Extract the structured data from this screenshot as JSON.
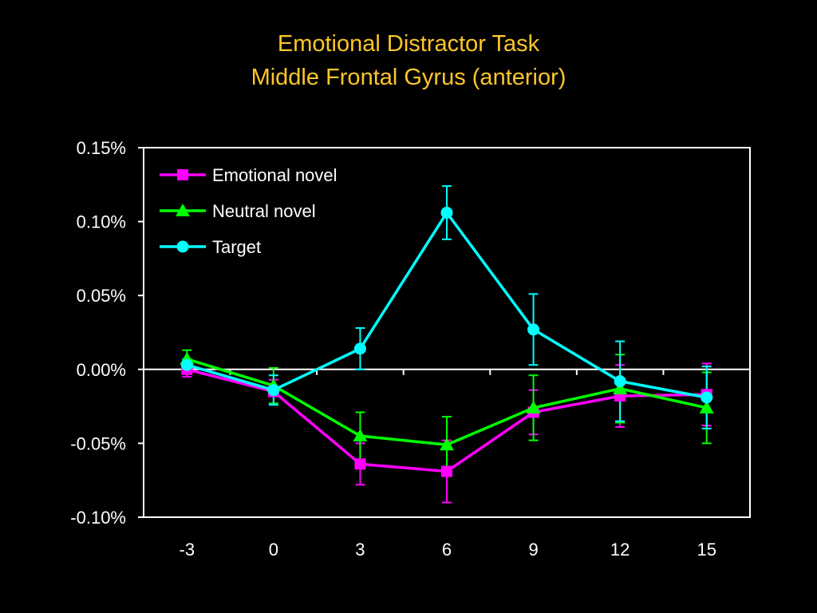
{
  "title_line1": "Emotional Distractor Task",
  "title_line2": "Middle Frontal Gyrus (anterior)",
  "colors": {
    "background": "#000000",
    "title": "#FFC62A",
    "axis": "#FFFFFF",
    "emotional_novel": "#FF00FF",
    "neutral_novel": "#00FF00",
    "target": "#00FFFF"
  },
  "chart_data": {
    "type": "line",
    "title": "Emotional Distractor Task Middle Frontal Gyrus (anterior)",
    "xlabel": "",
    "ylabel": "",
    "x": [
      -3,
      0,
      3,
      6,
      9,
      12,
      15
    ],
    "x_tick_labels": [
      "-3",
      "0",
      "3",
      "6",
      "9",
      "12",
      "15"
    ],
    "y_tick_labels": [
      "0.15%",
      "0.10%",
      "0.05%",
      "0.00%",
      "-0.05%",
      "-0.10%"
    ],
    "y_ticks": [
      0.15,
      0.1,
      0.05,
      0.0,
      -0.05,
      -0.1
    ],
    "ylim": [
      -0.1,
      0.15
    ],
    "y_unit": "%",
    "grid": false,
    "legend_position": "top-left",
    "series": [
      {
        "name": "Emotional novel",
        "marker": "square",
        "color": "#FF00FF",
        "values": [
          0.0,
          -0.015,
          -0.064,
          -0.069,
          -0.029,
          -0.018,
          -0.017
        ],
        "error": [
          0.005,
          0.008,
          0.014,
          0.021,
          0.015,
          0.021,
          0.021
        ]
      },
      {
        "name": "Neutral novel",
        "marker": "triangle",
        "color": "#00FF00",
        "values": [
          0.007,
          -0.011,
          -0.045,
          -0.051,
          -0.026,
          -0.013,
          -0.026
        ],
        "error": [
          0.006,
          0.012,
          0.016,
          0.019,
          0.022,
          0.023,
          0.024
        ]
      },
      {
        "name": "Target",
        "marker": "circle",
        "color": "#00FFFF",
        "values": [
          0.003,
          -0.014,
          0.014,
          0.106,
          0.027,
          -0.008,
          -0.019
        ],
        "error": [
          0.004,
          0.01,
          0.014,
          0.018,
          0.024,
          0.027,
          0.021
        ]
      }
    ]
  }
}
